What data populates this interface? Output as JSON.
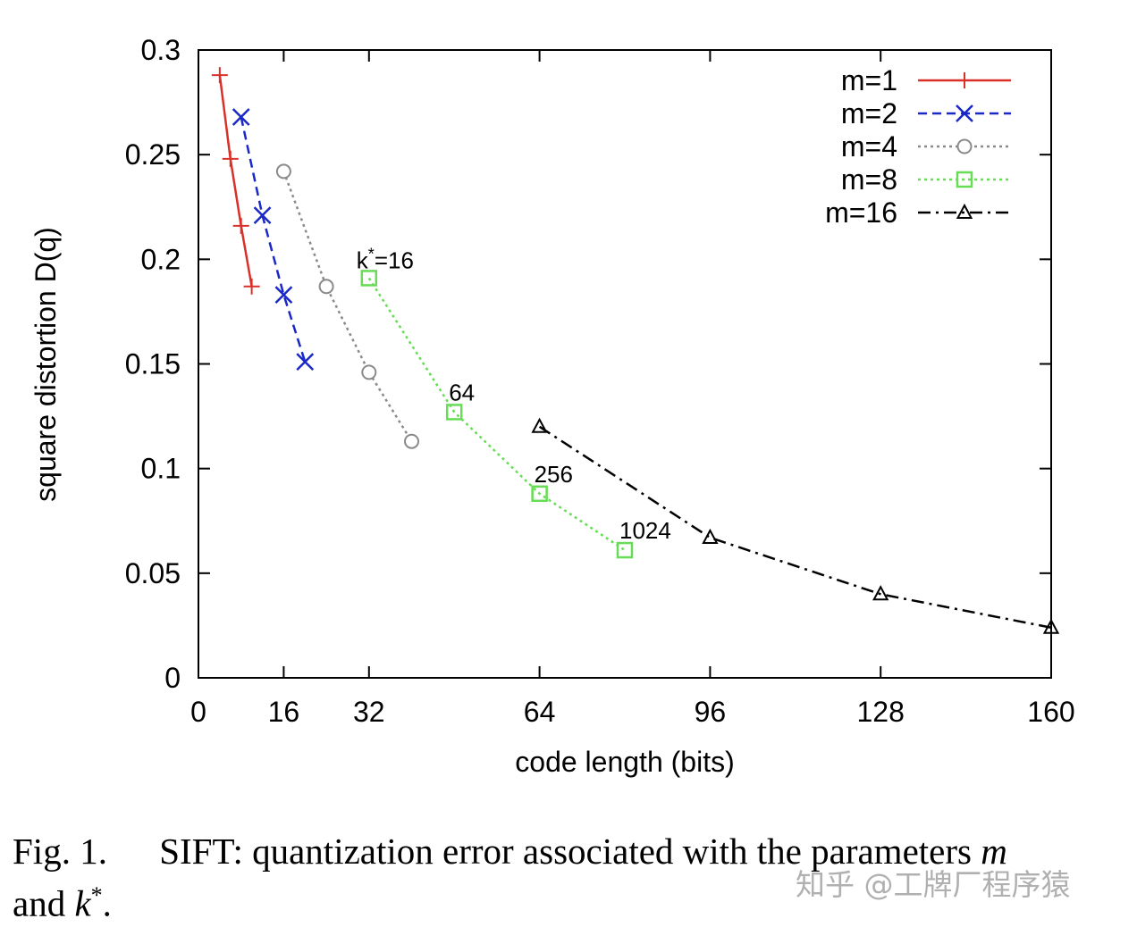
{
  "chart_data": {
    "type": "line",
    "xlabel": "code length (bits)",
    "ylabel": "square distortion D(q)",
    "xlim": [
      0,
      160
    ],
    "ylim": [
      0,
      0.3
    ],
    "x_ticks": [
      0,
      16,
      32,
      64,
      96,
      128,
      160
    ],
    "y_ticks": [
      "0",
      "0.05",
      "0.1",
      "0.15",
      "0.2",
      "0.25",
      "0.3"
    ],
    "legend_position": "top-right",
    "series": [
      {
        "name": "m=1",
        "color": "#d9302a",
        "line_style": "solid",
        "marker": "plus",
        "x": [
          4,
          6,
          8,
          10
        ],
        "y": [
          0.288,
          0.248,
          0.216,
          0.187
        ]
      },
      {
        "name": "m=2",
        "color": "#1a28c8",
        "line_style": "dashed",
        "marker": "cross",
        "x": [
          8,
          12,
          16,
          20
        ],
        "y": [
          0.268,
          0.221,
          0.183,
          0.151
        ]
      },
      {
        "name": "m=4",
        "color": "#8a8a8a",
        "line_style": "dotted",
        "marker": "circle",
        "x": [
          16,
          24,
          32,
          40
        ],
        "y": [
          0.242,
          0.187,
          0.146,
          0.113
        ]
      },
      {
        "name": "m=8",
        "color": "#66dd55",
        "line_style": "dotted",
        "marker": "square",
        "x": [
          32,
          48,
          64,
          80
        ],
        "y": [
          0.191,
          0.127,
          0.088,
          0.061
        ]
      },
      {
        "name": "m=16",
        "color": "#000000",
        "line_style": "dashdot",
        "marker": "triangle",
        "x": [
          64,
          96,
          128,
          160
        ],
        "y": [
          0.12,
          0.067,
          0.04,
          0.024
        ]
      }
    ],
    "annotations": [
      {
        "label": "k",
        "sup": "*",
        "suffix": "=16",
        "x": 32,
        "y": 0.191
      },
      {
        "label": "64",
        "x": 48,
        "y": 0.127
      },
      {
        "label": "256",
        "x": 64,
        "y": 0.088
      },
      {
        "label": "1024",
        "x": 80,
        "y": 0.061
      }
    ]
  },
  "caption": {
    "label": "Fig. 1.",
    "text": "SIFT: quantization error associated with the parameters",
    "var_m": "m",
    "line2_prefix": "and",
    "var_k": "k",
    "var_k_sup": "*",
    "line2_suffix": "."
  },
  "watermark": "知乎 @工牌厂程序猿"
}
